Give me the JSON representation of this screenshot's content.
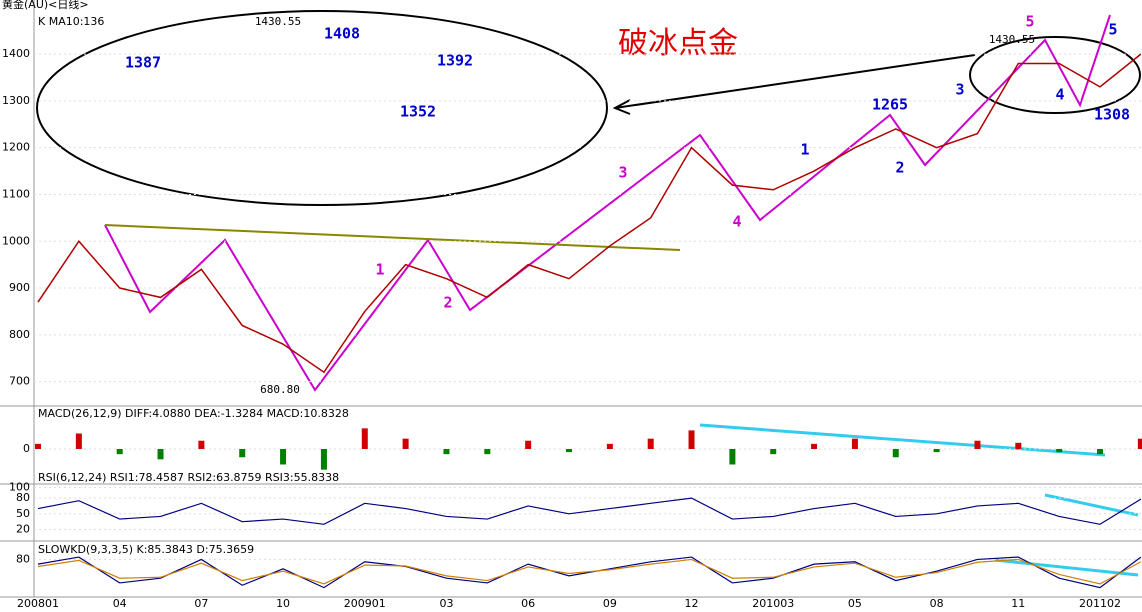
{
  "header": {
    "symbol": "黄金(AU)<日线>",
    "ma": "K MA10:136"
  },
  "chart_data": [
    {
      "type": "line",
      "title": "破冰点金",
      "categories": [
        "200801",
        null,
        "04",
        null,
        "07",
        null,
        "10",
        null,
        "200901",
        null,
        "03",
        null,
        "06",
        null,
        "09",
        null,
        "12",
        null,
        "201003",
        null,
        "05",
        null,
        "08",
        null,
        "11",
        null,
        "201102",
        null
      ],
      "values": [
        870,
        1000,
        900,
        880,
        940,
        820,
        780,
        720,
        850,
        950,
        920,
        880,
        950,
        920,
        990,
        1050,
        1200,
        1120,
        1110,
        1150,
        1200,
        1240,
        1200,
        1230,
        1380,
        1380,
        1330,
        1400
      ],
      "color": "#b00000",
      "ylim": [
        650,
        1490
      ],
      "yticks": [
        700,
        800,
        900,
        1000,
        1100,
        1200,
        1300,
        1400
      ],
      "annotations": [
        {
          "text": "1430.55",
          "color": "#000000"
        },
        {
          "text": "680.80",
          "color": "#000000"
        },
        {
          "text": "1430.55",
          "color": "#000000"
        },
        {
          "text": "1408",
          "color": "#0000cc"
        },
        {
          "text": "1387",
          "color": "#0000cc"
        },
        {
          "text": "1392",
          "color": "#0000cc"
        },
        {
          "text": "1352",
          "color": "#0000cc"
        },
        {
          "text": "1265",
          "color": "#0000cc"
        },
        {
          "text": "1308",
          "color": "#0000cc"
        },
        {
          "text": "1",
          "color": "#cc00cc"
        },
        {
          "text": "2",
          "color": "#cc00cc"
        },
        {
          "text": "3",
          "color": "#cc00cc"
        },
        {
          "text": "4",
          "color": "#cc00cc"
        },
        {
          "text": "5",
          "color": "#cc00cc"
        },
        {
          "text": "1",
          "color": "#0000cc"
        },
        {
          "text": "2",
          "color": "#0000cc"
        },
        {
          "text": "3",
          "color": "#0000cc"
        },
        {
          "text": "4",
          "color": "#0000cc"
        },
        {
          "text": "5",
          "color": "#0000cc"
        }
      ]
    },
    {
      "type": "bar",
      "title": "MACD(26,12,9) DIFF:4.0880 DEA:-1.3284 MACD:10.8328",
      "values": [
        5,
        15,
        -5,
        -10,
        8,
        -8,
        -15,
        -20,
        20,
        10,
        -5,
        -5,
        8,
        -3,
        5,
        10,
        18,
        -15,
        -5,
        5,
        10,
        -8,
        -3,
        8,
        6,
        -3,
        -5,
        10
      ],
      "color": "#d00000",
      "negative_color": "#008000",
      "ylim": [
        -30,
        30
      ],
      "yticks": [
        0
      ]
    },
    {
      "type": "line",
      "title": "RSI(6,12,24) RSI1:78.4587 RSI2:63.8759 RSI3:55.8338",
      "series": [
        {
          "color": "#000080",
          "values": [
            60,
            75,
            40,
            45,
            70,
            35,
            40,
            30,
            70,
            60,
            45,
            40,
            65,
            50,
            60,
            70,
            80,
            40,
            45,
            60,
            70,
            45,
            50,
            65,
            70,
            45,
            30,
            78
          ]
        }
      ],
      "ylim": [
        0,
        105
      ],
      "yticks": [
        20,
        50,
        80,
        100
      ]
    },
    {
      "type": "line",
      "title": "SLOWKD(9,3,3,5) K:85.3843 D:75.3659",
      "series": [
        {
          "color": "#000080",
          "values": [
            70,
            85,
            30,
            40,
            80,
            25,
            60,
            20,
            75,
            65,
            40,
            30,
            70,
            45,
            60,
            75,
            85,
            30,
            40,
            70,
            75,
            35,
            55,
            80,
            85,
            40,
            20,
            85
          ]
        },
        {
          "color": "#d08000",
          "values": [
            65,
            78,
            40,
            42,
            72,
            35,
            55,
            28,
            68,
            66,
            45,
            35,
            64,
            50,
            58,
            70,
            80,
            40,
            42,
            64,
            72,
            42,
            52,
            74,
            80,
            48,
            28,
            75
          ]
        }
      ],
      "ylim": [
        0,
        115
      ],
      "yticks": [
        80
      ]
    }
  ]
}
